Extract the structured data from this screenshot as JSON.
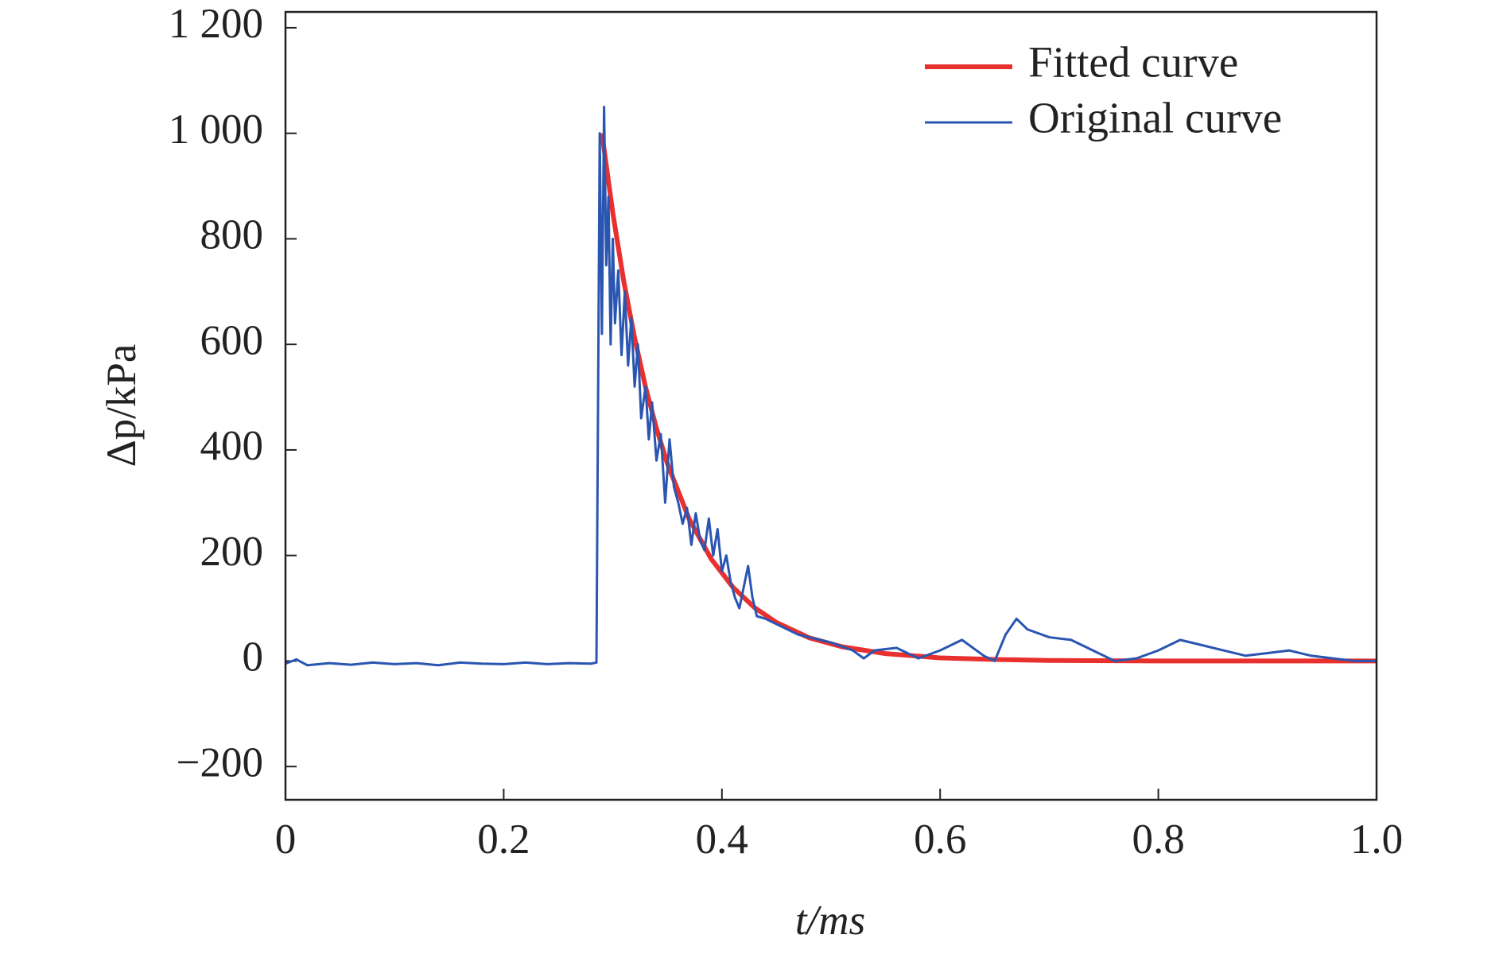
{
  "chart_data": {
    "type": "line",
    "xlabel": "t/ms",
    "ylabel": "Δp/kPa",
    "xlim": [
      0,
      1
    ],
    "xticks": [
      0,
      0.2,
      0.4,
      0.6,
      0.8,
      {
        "value": 1,
        "label": "1.0"
      }
    ],
    "ylim": [
      -263,
      1230
    ],
    "yticks": [
      {
        "value": -200,
        "label": "−200"
      },
      0,
      200,
      400,
      600,
      800,
      {
        "value": 1000,
        "label": "1 000"
      },
      {
        "value": 1200,
        "label": "1 200"
      }
    ],
    "legend": "upper right",
    "series": [
      {
        "name": "Fitted curve",
        "color": "#e8312f",
        "x": [
          0.29,
          0.3,
          0.31,
          0.32,
          0.33,
          0.34,
          0.35,
          0.37,
          0.39,
          0.41,
          0.43,
          0.45,
          0.48,
          0.51,
          0.55,
          0.6,
          0.65,
          0.7,
          0.8,
          0.9,
          1.0
        ],
        "values": [
          1000,
          849,
          720,
          612,
          519,
          441,
          374,
          269,
          194,
          140,
          101,
          73,
          44,
          27,
          14,
          6,
          3,
          1,
          0,
          0,
          0
        ]
      },
      {
        "name": "Original curve",
        "color": "#2a55b0",
        "x": [
          0,
          0.01,
          0.02,
          0.04,
          0.06,
          0.08,
          0.1,
          0.12,
          0.14,
          0.16,
          0.18,
          0.2,
          0.22,
          0.24,
          0.26,
          0.28,
          0.285,
          0.288,
          0.29,
          0.292,
          0.294,
          0.296,
          0.298,
          0.3,
          0.302,
          0.305,
          0.308,
          0.311,
          0.314,
          0.317,
          0.32,
          0.323,
          0.326,
          0.33,
          0.333,
          0.336,
          0.34,
          0.344,
          0.348,
          0.352,
          0.356,
          0.36,
          0.364,
          0.368,
          0.372,
          0.376,
          0.38,
          0.384,
          0.388,
          0.392,
          0.396,
          0.4,
          0.404,
          0.408,
          0.412,
          0.416,
          0.42,
          0.424,
          0.428,
          0.432,
          0.44,
          0.45,
          0.46,
          0.47,
          0.48,
          0.49,
          0.5,
          0.52,
          0.53,
          0.54,
          0.56,
          0.58,
          0.6,
          0.62,
          0.64,
          0.65,
          0.66,
          0.67,
          0.68,
          0.7,
          0.72,
          0.74,
          0.76,
          0.78,
          0.8,
          0.82,
          0.84,
          0.86,
          0.88,
          0.9,
          0.92,
          0.94,
          0.96,
          0.98,
          1.0
        ],
        "values": [
          -5,
          3,
          -8,
          -4,
          -7,
          -3,
          -6,
          -4,
          -8,
          -3,
          -5,
          -6,
          -3,
          -6,
          -4,
          -5,
          -3,
          1000,
          620,
          1050,
          750,
          880,
          600,
          800,
          640,
          740,
          580,
          700,
          560,
          650,
          520,
          600,
          460,
          520,
          420,
          490,
          380,
          430,
          300,
          420,
          330,
          300,
          260,
          290,
          220,
          280,
          230,
          210,
          270,
          200,
          250,
          170,
          200,
          150,
          120,
          100,
          140,
          180,
          120,
          85,
          80,
          70,
          60,
          50,
          45,
          40,
          35,
          20,
          5,
          20,
          25,
          5,
          20,
          40,
          10,
          0,
          50,
          80,
          60,
          45,
          40,
          20,
          0,
          5,
          20,
          40,
          30,
          20,
          10,
          15,
          20,
          10,
          5,
          0,
          0
        ]
      }
    ]
  }
}
